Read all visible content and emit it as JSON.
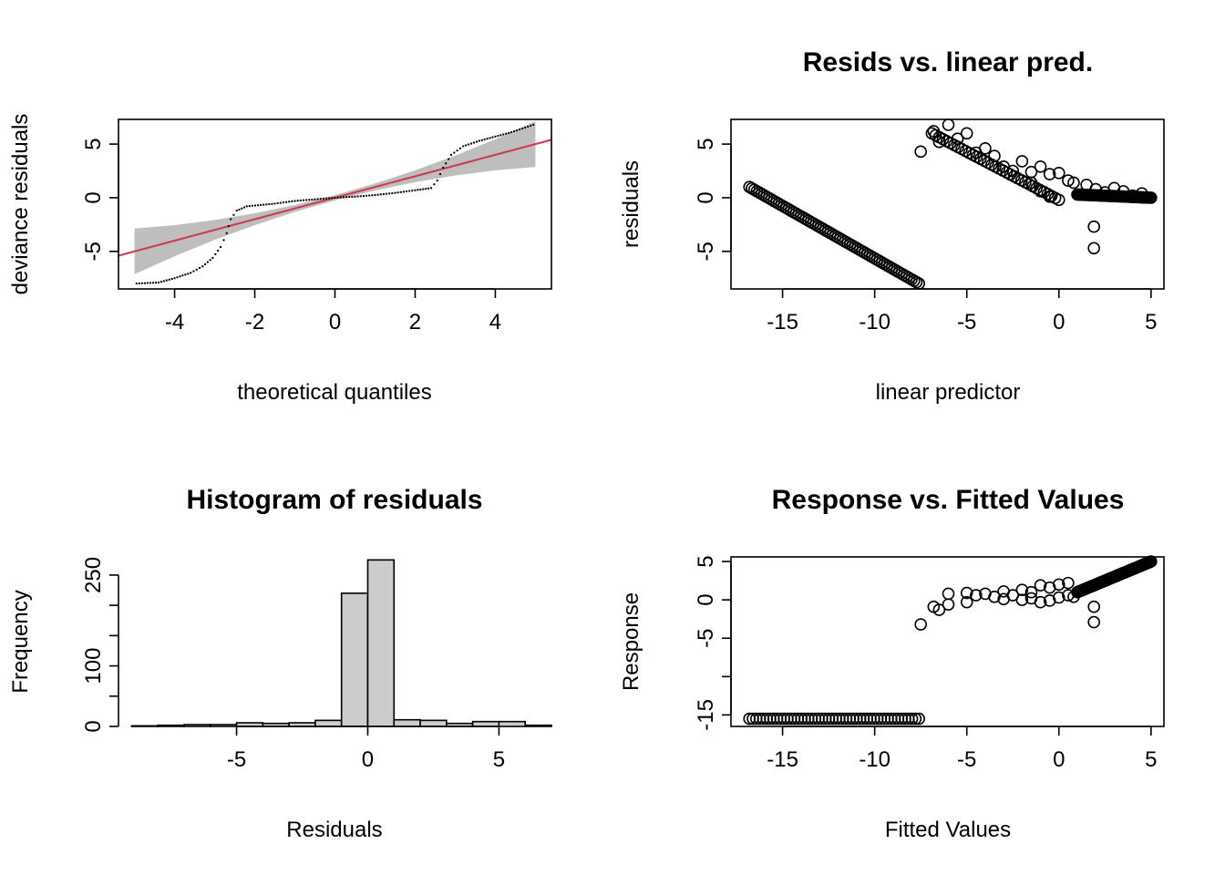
{
  "chart_data": [
    {
      "id": "qq",
      "type": "scatter",
      "title": "",
      "xlabel": "theoretical quantiles",
      "ylabel": "deviance residuals",
      "xlim": [
        -5.4,
        5.4
      ],
      "ylim": [
        -8.5,
        7.3
      ],
      "xticks": [
        -4,
        -2,
        0,
        2,
        4
      ],
      "yticks": [
        -5,
        0,
        5
      ],
      "grid": false,
      "reference_line": {
        "slope": 1.0,
        "intercept": 0.0,
        "color": "#CD3A4E"
      },
      "reference_band_color": "#BEBEBE",
      "curve_points": [
        [
          -4.95,
          -8.0
        ],
        [
          -4.4,
          -7.9
        ],
        [
          -4.0,
          -7.5
        ],
        [
          -3.6,
          -7.0
        ],
        [
          -3.3,
          -6.4
        ],
        [
          -3.05,
          -5.6
        ],
        [
          -2.85,
          -4.6
        ],
        [
          -2.7,
          -3.3
        ],
        [
          -2.6,
          -2.0
        ],
        [
          -2.45,
          -1.2
        ],
        [
          -2.2,
          -0.8
        ],
        [
          -1.5,
          -0.55
        ],
        [
          -1.0,
          -0.3
        ],
        [
          -0.5,
          -0.15
        ],
        [
          0.0,
          0.0
        ],
        [
          0.5,
          0.1
        ],
        [
          1.0,
          0.25
        ],
        [
          1.5,
          0.45
        ],
        [
          2.0,
          0.7
        ],
        [
          2.4,
          0.9
        ],
        [
          2.55,
          1.6
        ],
        [
          2.7,
          2.8
        ],
        [
          2.9,
          4.0
        ],
        [
          3.2,
          4.8
        ],
        [
          3.6,
          5.3
        ],
        [
          4.0,
          5.7
        ],
        [
          4.4,
          6.1
        ],
        [
          4.95,
          6.8
        ]
      ]
    },
    {
      "id": "resid-lp",
      "type": "scatter",
      "title": "Resids vs. linear pred.",
      "xlabel": "linear predictor",
      "ylabel": "residuals",
      "xlim": [
        -17.8,
        5.7
      ],
      "ylim": [
        -8.5,
        7.3
      ],
      "xticks": [
        -15,
        -10,
        -5,
        0,
        5
      ],
      "yticks": [
        -5,
        0,
        5
      ],
      "grid": false,
      "segments": [
        {
          "from": [
            -16.8,
            1.0
          ],
          "to": [
            -7.6,
            -8.0
          ],
          "n": 70
        },
        {
          "from": [
            -6.9,
            6.0
          ],
          "to": [
            0.0,
            -0.2
          ],
          "n": 35
        },
        {
          "from": [
            1.0,
            0.3
          ],
          "to": [
            5.0,
            0.0
          ],
          "n": 60
        }
      ],
      "points": [
        [
          -7.5,
          4.3
        ],
        [
          -6.8,
          6.2
        ],
        [
          -6.5,
          5.2
        ],
        [
          -6.0,
          6.8
        ],
        [
          -5.5,
          5.5
        ],
        [
          -5.0,
          6.0
        ],
        [
          -4.5,
          4.2
        ],
        [
          -4.0,
          4.6
        ],
        [
          -3.5,
          3.9
        ],
        [
          -3.0,
          2.9
        ],
        [
          -2.5,
          2.5
        ],
        [
          -2.0,
          3.4
        ],
        [
          -1.5,
          2.4
        ],
        [
          -1.0,
          2.9
        ],
        [
          -0.5,
          2.2
        ],
        [
          0.0,
          2.3
        ],
        [
          0.5,
          1.6
        ],
        [
          0.8,
          1.4
        ],
        [
          -1.5,
          1.4
        ],
        [
          -1.0,
          0.6
        ],
        [
          -0.5,
          0.1
        ],
        [
          1.5,
          1.2
        ],
        [
          2.0,
          0.8
        ],
        [
          2.5,
          0.5
        ],
        [
          3.0,
          0.9
        ],
        [
          3.5,
          0.6
        ],
        [
          4.0,
          0.2
        ],
        [
          4.5,
          0.4
        ],
        [
          1.9,
          -2.7
        ],
        [
          1.9,
          -4.7
        ]
      ]
    },
    {
      "id": "hist",
      "type": "bar",
      "title": "Histogram of residuals",
      "xlabel": "Residuals",
      "ylabel": "Frequency",
      "xlim": [
        -9.5,
        7.0
      ],
      "ylim": [
        0,
        280
      ],
      "xticks": [
        -5,
        0,
        5
      ],
      "yticks": [
        0,
        50,
        100,
        150,
        200,
        250
      ],
      "ytick_labels": [
        "0",
        "",
        "100",
        "",
        "",
        "250"
      ],
      "bar_fill": "#CCCCCC",
      "bins": [
        {
          "x0": -9,
          "x1": -8,
          "count": 1
        },
        {
          "x0": -8,
          "x1": -7,
          "count": 2
        },
        {
          "x0": -7,
          "x1": -6,
          "count": 3
        },
        {
          "x0": -6,
          "x1": -5,
          "count": 3
        },
        {
          "x0": -5,
          "x1": -4,
          "count": 6
        },
        {
          "x0": -4,
          "x1": -3,
          "count": 5
        },
        {
          "x0": -3,
          "x1": -2,
          "count": 6
        },
        {
          "x0": -2,
          "x1": -1,
          "count": 10
        },
        {
          "x0": -1,
          "x1": 0,
          "count": 220
        },
        {
          "x0": 0,
          "x1": 1,
          "count": 275
        },
        {
          "x0": 1,
          "x1": 2,
          "count": 11
        },
        {
          "x0": 2,
          "x1": 3,
          "count": 10
        },
        {
          "x0": 3,
          "x1": 4,
          "count": 5
        },
        {
          "x0": 4,
          "x1": 5,
          "count": 8
        },
        {
          "x0": 5,
          "x1": 6,
          "count": 8
        },
        {
          "x0": 6,
          "x1": 7,
          "count": 2
        }
      ]
    },
    {
      "id": "resp-fit",
      "type": "scatter",
      "title": "Response vs. Fitted Values",
      "xlabel": "Fitted Values",
      "ylabel": "Response",
      "xlim": [
        -17.8,
        5.7
      ],
      "ylim": [
        -16.5,
        5.6
      ],
      "xticks": [
        -15,
        -10,
        -5,
        0,
        5
      ],
      "yticks": [
        -15,
        -10,
        -5,
        0,
        5
      ],
      "ytick_labels": [
        "-15",
        "",
        "-5",
        "0",
        "5"
      ],
      "grid": false,
      "segments": [
        {
          "from": [
            -16.8,
            -15.5
          ],
          "to": [
            -7.6,
            -15.5
          ],
          "n": 50
        },
        {
          "from": [
            1.0,
            1.0
          ],
          "to": [
            5.0,
            5.0
          ],
          "n": 70
        }
      ],
      "points": [
        [
          -7.5,
          -3.2
        ],
        [
          -6.8,
          -0.9
        ],
        [
          -6.5,
          -1.3
        ],
        [
          -6.0,
          0.8
        ],
        [
          -6.0,
          -0.6
        ],
        [
          -5.0,
          0.9
        ],
        [
          -5.0,
          -0.3
        ],
        [
          -4.5,
          0.6
        ],
        [
          -4.0,
          0.8
        ],
        [
          -3.5,
          0.4
        ],
        [
          -3.0,
          1.1
        ],
        [
          -3.0,
          0.1
        ],
        [
          -2.5,
          0.6
        ],
        [
          -2.0,
          1.3
        ],
        [
          -2.0,
          0.0
        ],
        [
          -1.5,
          1.0
        ],
        [
          -1.5,
          0.2
        ],
        [
          -1.0,
          1.9
        ],
        [
          -1.0,
          -0.3
        ],
        [
          -0.5,
          1.6
        ],
        [
          -0.5,
          -0.1
        ],
        [
          0.0,
          2.0
        ],
        [
          0.0,
          0.3
        ],
        [
          0.5,
          2.2
        ],
        [
          0.5,
          0.6
        ],
        [
          0.8,
          0.4
        ],
        [
          1.9,
          -0.9
        ],
        [
          1.9,
          -2.9
        ]
      ]
    }
  ]
}
